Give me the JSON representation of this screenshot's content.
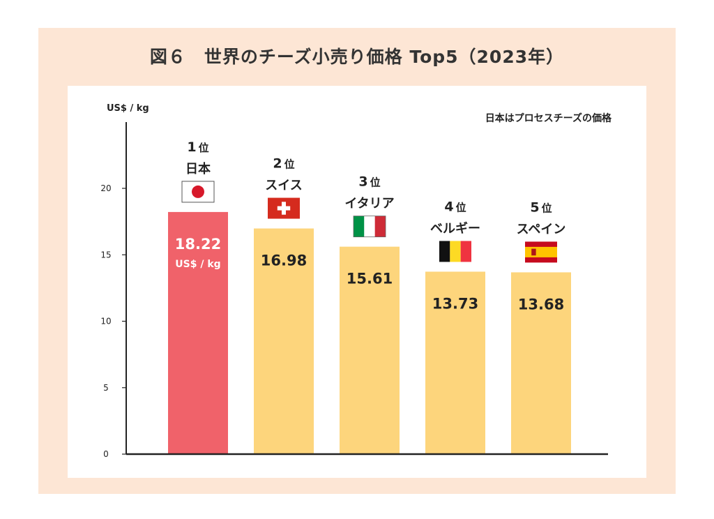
{
  "title": "図６　世界のチーズ小売り価格 Top5（2023年）",
  "colors": {
    "frame": "#fde6d5",
    "highlight": "#f0626a",
    "bar": "#fdd57c",
    "axis": "#222222"
  },
  "chart_data": {
    "type": "bar",
    "ylabel": "US$ / kg",
    "note": "日本はプロセスチーズの価格",
    "ylim": [
      0,
      25
    ],
    "yticks": [
      0,
      5,
      10,
      15,
      20
    ],
    "rank_suffix": "位",
    "value_unit": "US$ / kg",
    "bars": [
      {
        "rank": "1",
        "country": "日本",
        "value": 18.22,
        "value_label": "18.22",
        "flag": "japan-flag-icon",
        "highlight": true
      },
      {
        "rank": "2",
        "country": "スイス",
        "value": 16.98,
        "value_label": "16.98",
        "flag": "switzerland-flag-icon",
        "highlight": false
      },
      {
        "rank": "3",
        "country": "イタリア",
        "value": 15.61,
        "value_label": "15.61",
        "flag": "italy-flag-icon",
        "highlight": false
      },
      {
        "rank": "4",
        "country": "ベルギー",
        "value": 13.73,
        "value_label": "13.73",
        "flag": "belgium-flag-icon",
        "highlight": false
      },
      {
        "rank": "5",
        "country": "スペイン",
        "value": 13.68,
        "value_label": "13.68",
        "flag": "spain-flag-icon",
        "highlight": false
      }
    ]
  }
}
